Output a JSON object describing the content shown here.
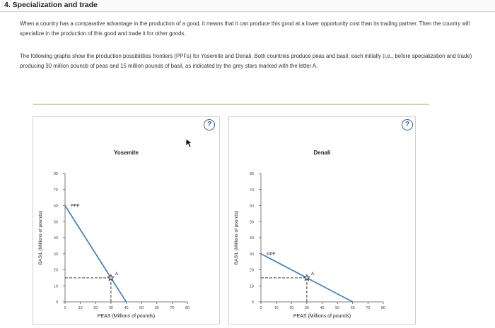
{
  "section_title": "4. Specialization and trade",
  "paragraph1": "When a country has a comparative advantage in the production of a good, it means that it can produce this good at a lower opportunity cost than its trading partner. Then the country will specialize in the production of this good and trade it for other goods.",
  "paragraph2": "The following graphs show the production possibilities frontiers (PPFs) for Yosemite and Denali. Both countries produce peas and basil, each initially (i.e., before specialization and trade) producing 30 million pounds of peas and 15 million pounds of basil, as indicated by the grey stars marked with the letter A.",
  "help_label": "?",
  "chart_data": [
    {
      "type": "line",
      "title": "Yosemite",
      "xlabel": "PEAS (Millions of pounds)",
      "ylabel": "BASIL (Millions of pounds)",
      "xlim": [
        0,
        80
      ],
      "ylim": [
        0,
        80
      ],
      "xticks": [
        0,
        10,
        20,
        30,
        40,
        50,
        60,
        70,
        80
      ],
      "yticks": [
        0,
        10,
        20,
        30,
        40,
        50,
        60,
        70,
        80
      ],
      "series": [
        {
          "name": "PPF",
          "x": [
            0,
            40
          ],
          "y": [
            60,
            0
          ],
          "color": "#4f81bd"
        }
      ],
      "point": {
        "label": "A",
        "x": 30,
        "y": 15
      }
    },
    {
      "type": "line",
      "title": "Denali",
      "xlabel": "PEAS (Millions of pounds)",
      "ylabel": "BASIL (Millions of pounds)",
      "xlim": [
        0,
        80
      ],
      "ylim": [
        0,
        80
      ],
      "xticks": [
        0,
        10,
        20,
        30,
        40,
        50,
        60,
        70,
        80
      ],
      "yticks": [
        0,
        10,
        20,
        30,
        40,
        50,
        60,
        70,
        80
      ],
      "series": [
        {
          "name": "PPF",
          "x": [
            0,
            60
          ],
          "y": [
            30,
            0
          ],
          "color": "#4f81bd"
        }
      ],
      "point": {
        "label": "A",
        "x": 30,
        "y": 15
      }
    }
  ]
}
